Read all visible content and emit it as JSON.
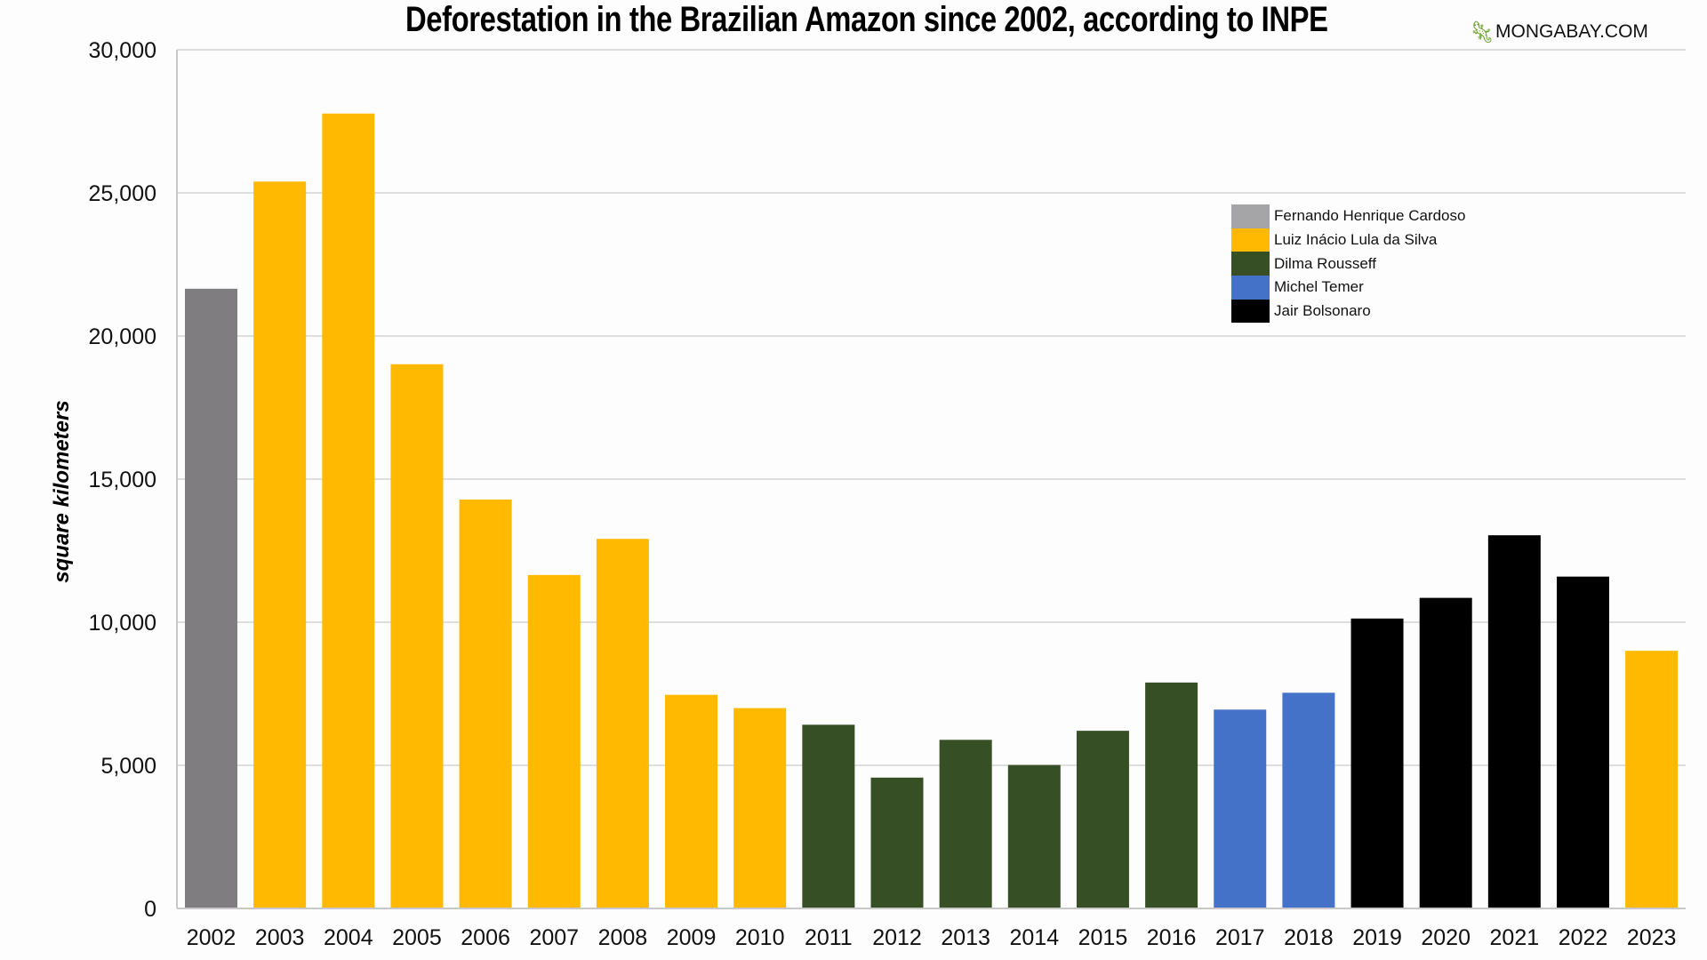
{
  "chart_data": {
    "type": "bar",
    "title": "Deforestation in the Brazilian Amazon since 2002, according to INPE",
    "xlabel": "",
    "ylabel": "square kilometers",
    "ylim": [
      0,
      30000
    ],
    "yticks": [
      0,
      5000,
      10000,
      15000,
      20000,
      25000,
      30000
    ],
    "ytick_labels": [
      "0",
      "5,000",
      "10,000",
      "15,000",
      "20,000",
      "25,000",
      "30,000"
    ],
    "grid": true,
    "legend_position": "top-right",
    "categories": [
      "2002",
      "2003",
      "2004",
      "2005",
      "2006",
      "2007",
      "2008",
      "2009",
      "2010",
      "2011",
      "2012",
      "2013",
      "2014",
      "2015",
      "2016",
      "2017",
      "2018",
      "2019",
      "2020",
      "2021",
      "2022",
      "2023"
    ],
    "values": [
      21651,
      25396,
      27772,
      19014,
      14286,
      11651,
      12911,
      7464,
      7000,
      6418,
      4571,
      5891,
      5012,
      6207,
      7893,
      6947,
      7536,
      10129,
      10851,
      13038,
      11594,
      9001
    ],
    "president": [
      "Fernando Henrique Cardoso",
      "Luiz Inácio Lula da Silva",
      "Luiz Inácio Lula da Silva",
      "Luiz Inácio Lula da Silva",
      "Luiz Inácio Lula da Silva",
      "Luiz Inácio Lula da Silva",
      "Luiz Inácio Lula da Silva",
      "Luiz Inácio Lula da Silva",
      "Luiz Inácio Lula da Silva",
      "Dilma Rousseff",
      "Dilma Rousseff",
      "Dilma Rousseff",
      "Dilma Rousseff",
      "Dilma Rousseff",
      "Dilma Rousseff",
      "Michel Temer",
      "Michel Temer",
      "Jair Bolsonaro",
      "Jair Bolsonaro",
      "Jair Bolsonaro",
      "Jair Bolsonaro",
      "Luiz Inácio Lula da Silva"
    ],
    "legend": [
      {
        "name": "Fernando Henrique Cardoso",
        "color": "#a5a4a6"
      },
      {
        "name": "Luiz Inácio Lula da Silva",
        "color": "#ffb900"
      },
      {
        "name": "Dilma Rousseff",
        "color": "#374f24"
      },
      {
        "name": "Michel Temer",
        "color": "#4472c9"
      },
      {
        "name": "Jair Bolsonaro",
        "color": "#000000"
      }
    ],
    "bar_colors": {
      "Fernando Henrique Cardoso": "#7f7d80",
      "Luiz Inácio Lula da Silva": "#ffb900",
      "Dilma Rousseff": "#374f24",
      "Michel Temer": "#4472c9",
      "Jair Bolsonaro": "#000000"
    }
  },
  "branding": {
    "logo_text": "MONGABAY.COM",
    "icon": "gecko-icon"
  }
}
